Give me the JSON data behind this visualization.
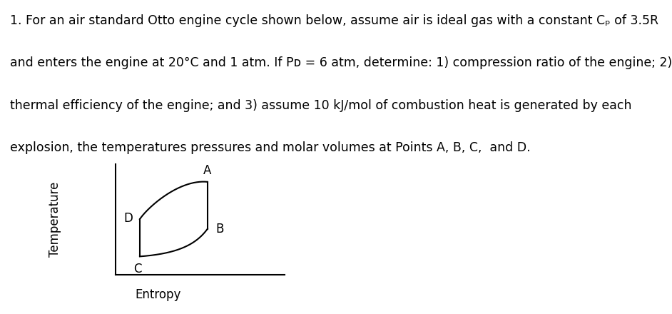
{
  "title_lines": [
    "1. For an air standard Otto engine cycle shown below, assume air is ideal gas with a constant Cₚ of 3.5R",
    "and enters the engine at 20°C and 1 atm. If Pᴅ = 6 atm, determine: 1) compression ratio of the engine; 2)",
    "thermal efficiency of the engine; and 3) assume 10 kJ/mol of combustion heat is generated by each",
    "explosion, the temperatures pressures and molar volumes at Points A, B, C,  and D."
  ],
  "xlabel": "Entropy",
  "ylabel": "Temperature",
  "bg_color": "#ffffff",
  "line_color": "#000000",
  "text_color": "#000000",
  "fontsize_text": 12.5,
  "fontsize_labels": 12,
  "fontsize_points": 12
}
